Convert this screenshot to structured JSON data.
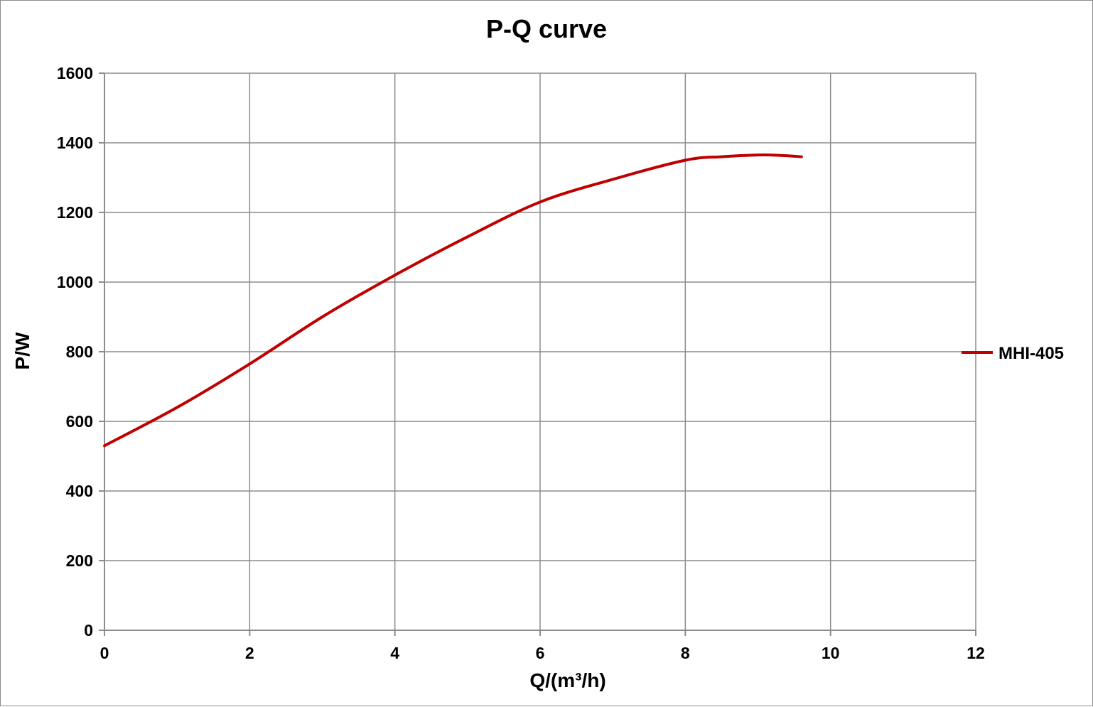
{
  "chart_data": {
    "type": "line",
    "title": "P-Q  curve",
    "xlabel": "Q/(m³/h)",
    "ylabel": "P/W",
    "xlim": [
      0,
      12
    ],
    "ylim": [
      0,
      1600
    ],
    "x_ticks": [
      "0",
      "2",
      "4",
      "6",
      "8",
      "10",
      "12"
    ],
    "y_ticks": [
      "0",
      "200",
      "400",
      "600",
      "800",
      "1000",
      "1200",
      "1400",
      "1600"
    ],
    "grid": true,
    "legend_position": "right",
    "series": [
      {
        "name": "MHI-405",
        "color": "#c00000",
        "x": [
          0,
          1,
          2,
          3,
          4,
          5,
          6,
          7,
          8,
          8.5,
          9,
          9.3,
          9.6
        ],
        "y": [
          530,
          640,
          765,
          900,
          1020,
          1130,
          1230,
          1295,
          1350,
          1360,
          1365,
          1364,
          1360
        ]
      }
    ]
  }
}
